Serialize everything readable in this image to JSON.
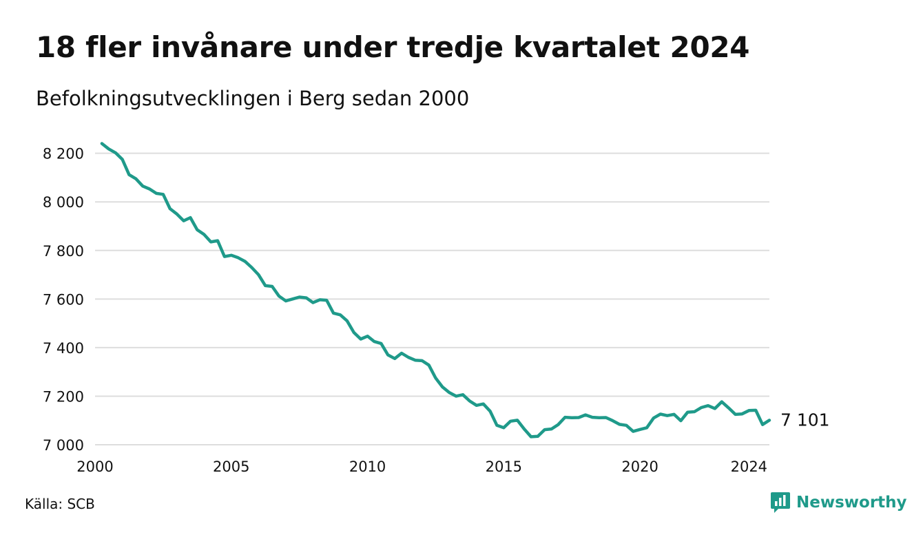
{
  "title": "18 fler invånare under tredje kvartalet 2024",
  "subtitle": "Befolkningsutvecklingen i Berg sedan 2000",
  "source": "Källa: SCB",
  "brand": {
    "name": "Newsworthy",
    "icon": "newsworthy-logo-icon",
    "color": "#1f9a8a"
  },
  "colors": {
    "line": "#1f9a8a",
    "grid": "#dddddd"
  },
  "chart_data": {
    "type": "line",
    "title": "18 fler invånare under tredje kvartalet 2024",
    "subtitle": "Befolkningsutvecklingen i Berg sedan 2000",
    "xlabel": "",
    "ylabel": "",
    "xlim": [
      2000,
      2024.75
    ],
    "ylim": [
      7000,
      8250
    ],
    "yticks": [
      7000,
      7200,
      7400,
      7600,
      7800,
      8000,
      8200
    ],
    "ytick_labels": [
      "7 000",
      "7 200",
      "7 400",
      "7 600",
      "7 800",
      "8 000",
      "8 200"
    ],
    "xticks": [
      2000,
      2005,
      2010,
      2015,
      2020,
      2024
    ],
    "xtick_labels": [
      "2000",
      "2005",
      "2010",
      "2015",
      "2020",
      "2024"
    ],
    "grid": true,
    "legend": "none",
    "end_label": "7 101",
    "series": [
      {
        "x": [
          2000.25,
          2000.5,
          2000.75,
          2001.0,
          2001.25,
          2001.5,
          2001.75,
          2002.0,
          2002.25,
          2002.5,
          2002.75,
          2003.0,
          2003.25,
          2003.5,
          2003.75,
          2004.0,
          2004.25,
          2004.5,
          2004.75,
          2005.0,
          2005.25,
          2005.5,
          2005.75,
          2006.0,
          2006.25,
          2006.5,
          2006.75,
          2007.0,
          2007.25,
          2007.5,
          2007.75,
          2008.0,
          2008.25,
          2008.5,
          2008.75,
          2009.0,
          2009.25,
          2009.5,
          2009.75,
          2010.0,
          2010.25,
          2010.5,
          2010.75,
          2011.0,
          2011.25,
          2011.5,
          2011.75,
          2012.0,
          2012.25,
          2012.5,
          2012.75,
          2013.0,
          2013.25,
          2013.5,
          2013.75,
          2014.0,
          2014.25,
          2014.5,
          2014.75,
          2015.0,
          2015.25,
          2015.5,
          2015.75,
          2016.0,
          2016.25,
          2016.5,
          2016.75,
          2017.0,
          2017.25,
          2017.5,
          2017.75,
          2018.0,
          2018.25,
          2018.5,
          2018.75,
          2019.0,
          2019.25,
          2019.5,
          2019.75,
          2020.0,
          2020.25,
          2020.5,
          2020.75,
          2021.0,
          2021.25,
          2021.5,
          2021.75,
          2022.0,
          2022.25,
          2022.5,
          2022.75,
          2023.0,
          2023.25,
          2023.5,
          2023.75,
          2024.0,
          2024.25,
          2024.5,
          2024.75
        ],
        "values": [
          8240,
          8218,
          8202,
          8175,
          8112,
          8095,
          8065,
          8053,
          8035,
          8031,
          7972,
          7950,
          7922,
          7935,
          7885,
          7866,
          7835,
          7840,
          7775,
          7780,
          7770,
          7755,
          7730,
          7700,
          7655,
          7652,
          7612,
          7592,
          7600,
          7608,
          7605,
          7585,
          7597,
          7595,
          7542,
          7535,
          7510,
          7462,
          7435,
          7447,
          7425,
          7417,
          7370,
          7355,
          7377,
          7360,
          7348,
          7346,
          7328,
          7275,
          7238,
          7215,
          7200,
          7206,
          7180,
          7162,
          7168,
          7138,
          7080,
          7070,
          7097,
          7101,
          7065,
          7033,
          7035,
          7062,
          7065,
          7083,
          7113,
          7111,
          7112,
          7123,
          7113,
          7111,
          7112,
          7099,
          7084,
          7080,
          7055,
          7063,
          7070,
          7110,
          7126,
          7120,
          7125,
          7099,
          7134,
          7136,
          7153,
          7161,
          7149,
          7177,
          7152,
          7125,
          7127,
          7141,
          7142,
          7083,
          7101
        ]
      }
    ]
  }
}
